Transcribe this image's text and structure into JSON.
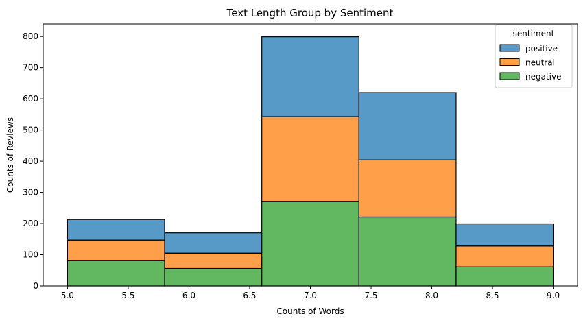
{
  "chart_data": {
    "type": "bar",
    "subtype": "stacked-histogram",
    "title": "Text Length Group by Sentiment",
    "xlabel": "Counts of Words",
    "ylabel": "Counts of Reviews",
    "xlim": [
      4.8,
      9.2
    ],
    "ylim": [
      0,
      840
    ],
    "xticks": [
      5.0,
      5.5,
      6.0,
      6.5,
      7.0,
      7.5,
      8.0,
      8.5,
      9.0
    ],
    "xtick_labels": [
      "5.0",
      "5.5",
      "6.0",
      "6.5",
      "7.0",
      "7.5",
      "8.0",
      "8.5",
      "9.0"
    ],
    "yticks": [
      0,
      100,
      200,
      300,
      400,
      500,
      600,
      700,
      800
    ],
    "ytick_labels": [
      "0",
      "100",
      "200",
      "300",
      "400",
      "500",
      "600",
      "700",
      "800"
    ],
    "bins": [
      [
        5.0,
        5.8
      ],
      [
        5.8,
        6.6
      ],
      [
        6.6,
        7.4
      ],
      [
        7.4,
        8.2
      ],
      [
        8.2,
        9.0
      ]
    ],
    "series": [
      {
        "name": "negative",
        "color": "#2ca02c",
        "values": [
          82,
          56,
          271,
          221,
          61
        ]
      },
      {
        "name": "neutral",
        "color": "#ff7f0e",
        "values": [
          65,
          49,
          272,
          183,
          67
        ]
      },
      {
        "name": "positive",
        "color": "#1f77b4",
        "values": [
          66,
          65,
          256,
          216,
          71
        ]
      }
    ],
    "legend": {
      "title": "sentiment",
      "position": "top-right",
      "order": [
        "positive",
        "neutral",
        "negative"
      ]
    },
    "grid": false,
    "bar_alpha": 0.75
  }
}
